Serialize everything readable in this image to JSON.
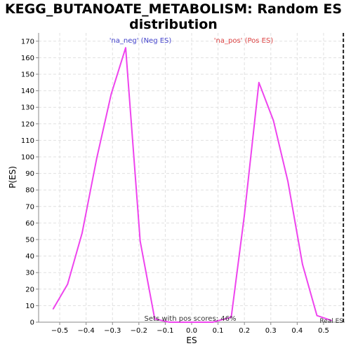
{
  "chart_data": {
    "type": "line",
    "title": "KEGG_BUTANOATE_METABOLISM: Random ES distribution",
    "title_lines": [
      "KEGG_BUTANOATE_METABOLISM: Random ES",
      "distribution"
    ],
    "xlabel": "ES",
    "ylabel": "P(ES)",
    "xlim": [
      -0.58,
      0.58
    ],
    "ylim": [
      0,
      175
    ],
    "xticks": [
      -0.5,
      -0.4,
      -0.3,
      -0.2,
      -0.1,
      0.0,
      0.1,
      0.2,
      0.3,
      0.4,
      0.5
    ],
    "xtick_labels": [
      "−0.5",
      "−0.4",
      "−0.3",
      "−0.2",
      "−0.1",
      "0.0",
      "0.1",
      "0.2",
      "0.3",
      "0.4",
      "0.5"
    ],
    "yticks": [
      0,
      10,
      20,
      30,
      40,
      50,
      60,
      70,
      80,
      90,
      100,
      110,
      120,
      130,
      140,
      150,
      160,
      170
    ],
    "grid": true,
    "series": [
      {
        "color": "#ee44ee",
        "x": [
          -0.525,
          -0.47,
          -0.415,
          -0.36,
          -0.305,
          -0.25,
          -0.195,
          -0.14,
          -0.085,
          -0.03,
          0.025,
          0.08,
          0.15,
          0.2,
          0.255,
          0.31,
          0.365,
          0.42,
          0.475,
          0.53
        ],
        "y": [
          8,
          23,
          54,
          99,
          138,
          166,
          49,
          2,
          0,
          0,
          0,
          0,
          3,
          65,
          145,
          122,
          85,
          35,
          4,
          1
        ]
      }
    ],
    "annotations": {
      "neg_label": "'na_neg' (Neg ES)",
      "neg_color": "#4444cc",
      "pos_label": "'na_pos' (Pos ES)",
      "pos_color": "#dd4444",
      "pos_scores_text": "Sets with pos scores: 46%",
      "real_es_label": "Real ES",
      "real_es_value": 0.575
    }
  }
}
